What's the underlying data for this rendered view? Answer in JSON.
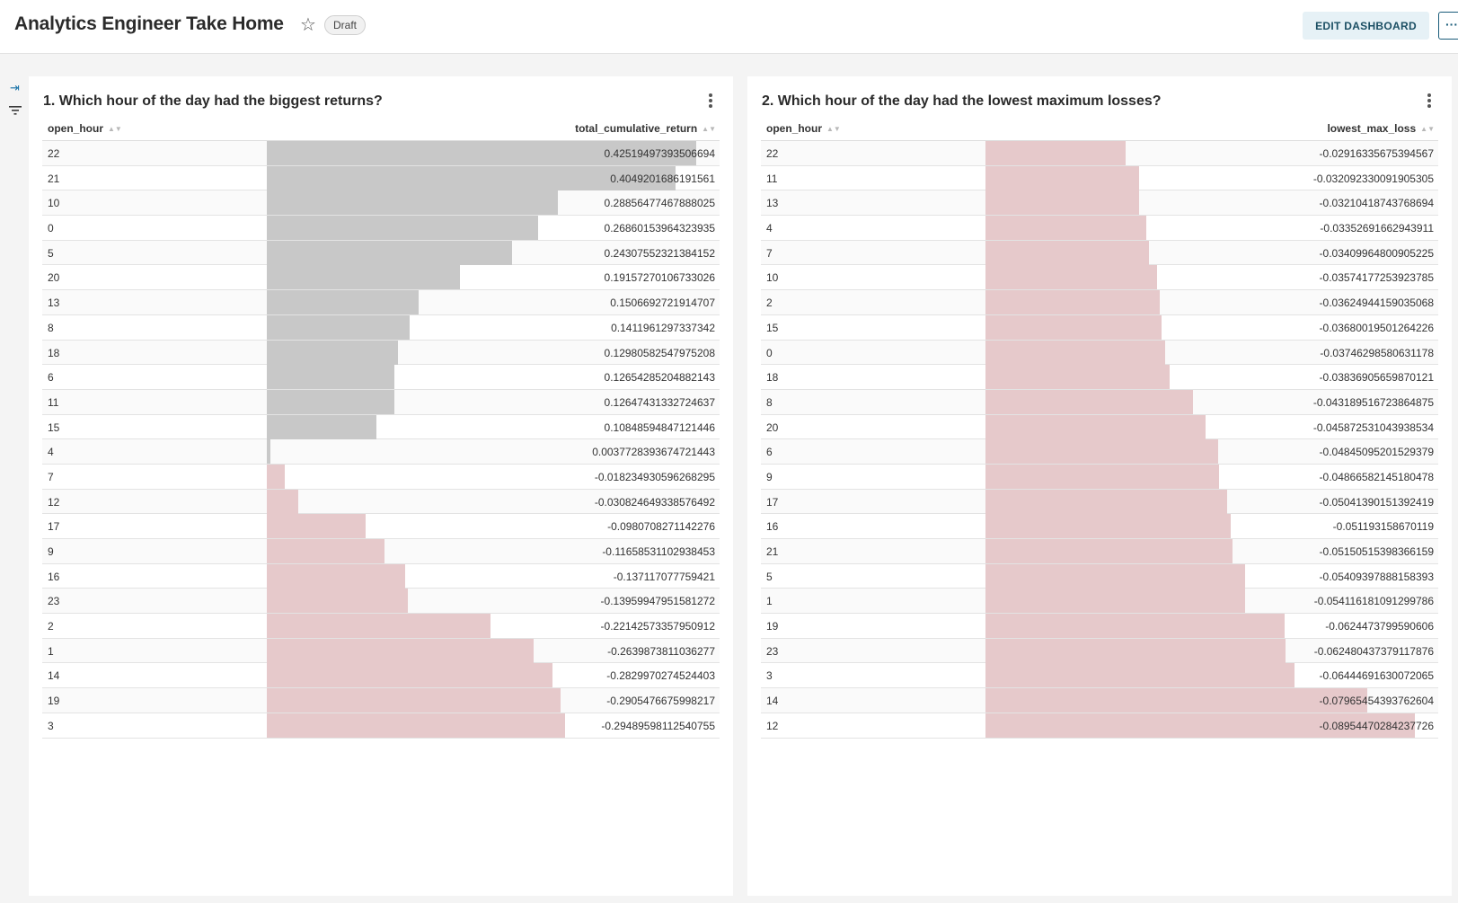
{
  "header": {
    "title": "Analytics Engineer Take Home",
    "badge": "Draft",
    "edit_label": "EDIT DASHBOARD",
    "more_label": "···"
  },
  "colors": {
    "positive_bar": "#c8c8c8",
    "negative_bar": "#e6c9cb",
    "accent": "#1a73a8"
  },
  "panels": [
    {
      "title": "1. Which hour of the day had the biggest returns?",
      "columns": [
        "open_hour",
        "total_cumulative_return"
      ],
      "rows": [
        {
          "hour": "22",
          "value": "0.42519497393506694"
        },
        {
          "hour": "21",
          "value": "0.4049201686191561"
        },
        {
          "hour": "10",
          "value": "0.28856477467888025"
        },
        {
          "hour": "0",
          "value": "0.26860153964323935"
        },
        {
          "hour": "5",
          "value": "0.24307552321384152"
        },
        {
          "hour": "20",
          "value": "0.19157270106733026"
        },
        {
          "hour": "13",
          "value": "0.1506692721914707"
        },
        {
          "hour": "8",
          "value": "0.1411961297337342"
        },
        {
          "hour": "18",
          "value": "0.12980582547975208"
        },
        {
          "hour": "6",
          "value": "0.12654285204882143"
        },
        {
          "hour": "11",
          "value": "0.12647431332724637"
        },
        {
          "hour": "15",
          "value": "0.10848594847121446"
        },
        {
          "hour": "4",
          "value": "0.0037728393674721443"
        },
        {
          "hour": "7",
          "value": "-0.018234930596268295"
        },
        {
          "hour": "12",
          "value": "-0.030824649338576492"
        },
        {
          "hour": "17",
          "value": "-0.0980708271142276"
        },
        {
          "hour": "9",
          "value": "-0.11658531102938453"
        },
        {
          "hour": "16",
          "value": "-0.137117077759421"
        },
        {
          "hour": "23",
          "value": "-0.13959947951581272"
        },
        {
          "hour": "2",
          "value": "-0.22142573357950912"
        },
        {
          "hour": "1",
          "value": "-0.2639873811036277"
        },
        {
          "hour": "14",
          "value": "-0.2829970274524403"
        },
        {
          "hour": "19",
          "value": "-0.2905476675998217"
        },
        {
          "hour": "3",
          "value": "-0.29489598112540755"
        }
      ]
    },
    {
      "title": "2. Which hour of the day had the lowest maximum losses?",
      "columns": [
        "open_hour",
        "lowest_max_loss"
      ],
      "rows": [
        {
          "hour": "22",
          "value": "-0.02916335675394567"
        },
        {
          "hour": "11",
          "value": "-0.032092330091905305"
        },
        {
          "hour": "13",
          "value": "-0.03210418743768694"
        },
        {
          "hour": "4",
          "value": "-0.03352691662943911"
        },
        {
          "hour": "7",
          "value": "-0.03409964800905225"
        },
        {
          "hour": "10",
          "value": "-0.03574177253923785"
        },
        {
          "hour": "2",
          "value": "-0.03624944159035068"
        },
        {
          "hour": "15",
          "value": "-0.03680019501264226"
        },
        {
          "hour": "0",
          "value": "-0.03746298580631178"
        },
        {
          "hour": "18",
          "value": "-0.03836905659870121"
        },
        {
          "hour": "8",
          "value": "-0.043189516723864875"
        },
        {
          "hour": "20",
          "value": "-0.045872531043938534"
        },
        {
          "hour": "6",
          "value": "-0.04845095201529379"
        },
        {
          "hour": "9",
          "value": "-0.04866582145180478"
        },
        {
          "hour": "17",
          "value": "-0.05041390151392419"
        },
        {
          "hour": "16",
          "value": "-0.051193158670119"
        },
        {
          "hour": "21",
          "value": "-0.05150515398366159"
        },
        {
          "hour": "5",
          "value": "-0.05409397888158393"
        },
        {
          "hour": "1",
          "value": "-0.054116181091299786"
        },
        {
          "hour": "19",
          "value": "-0.0624473799590606"
        },
        {
          "hour": "23",
          "value": "-0.062480437379117876"
        },
        {
          "hour": "3",
          "value": "-0.06444691630072065"
        },
        {
          "hour": "14",
          "value": "-0.07965454393762604"
        },
        {
          "hour": "12",
          "value": "-0.08954470284237726"
        }
      ]
    }
  ]
}
